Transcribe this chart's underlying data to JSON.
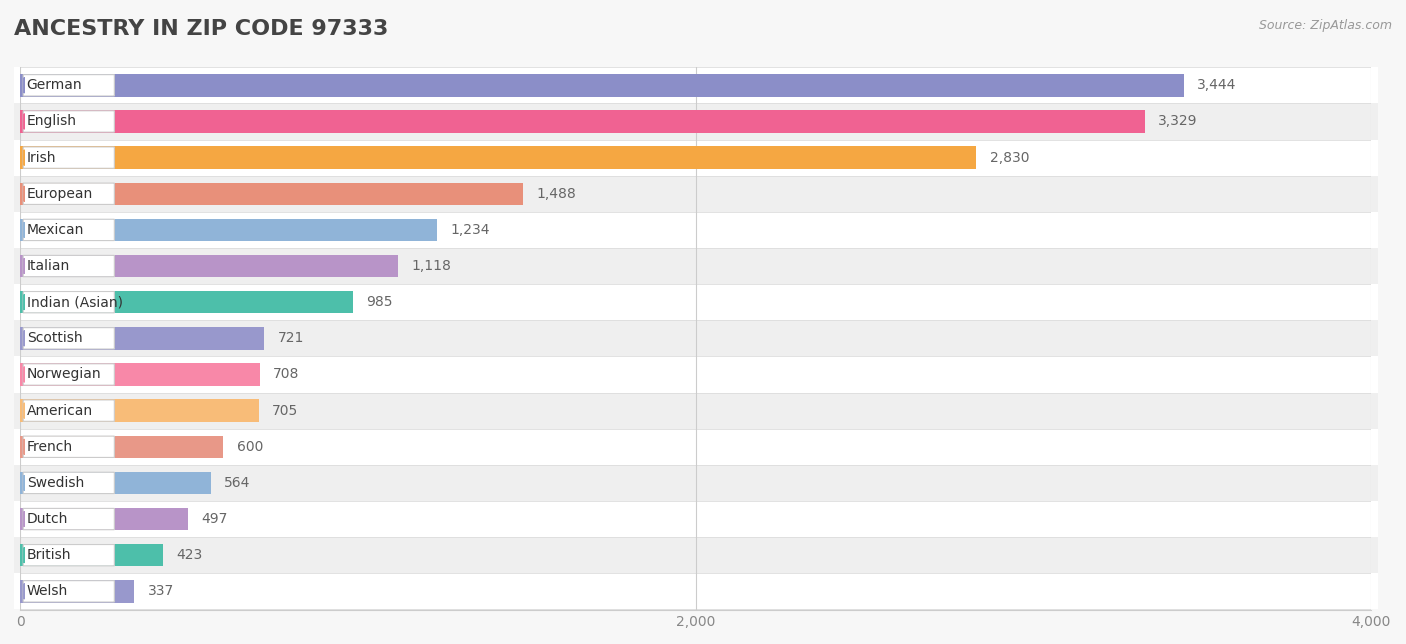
{
  "title": "ANCESTRY IN ZIP CODE 97333",
  "source": "Source: ZipAtlas.com",
  "categories": [
    "German",
    "English",
    "Irish",
    "European",
    "Mexican",
    "Italian",
    "Indian (Asian)",
    "Scottish",
    "Norwegian",
    "American",
    "French",
    "Swedish",
    "Dutch",
    "British",
    "Welsh"
  ],
  "values": [
    3444,
    3329,
    2830,
    1488,
    1234,
    1118,
    985,
    721,
    708,
    705,
    600,
    564,
    497,
    423,
    337
  ],
  "bar_colors": [
    "#8b8ec8",
    "#f06292",
    "#f5a742",
    "#e8907a",
    "#90b4d8",
    "#b894c8",
    "#4dbfaa",
    "#9898cc",
    "#f888a8",
    "#f8bc78",
    "#e89888",
    "#90b4d8",
    "#b894c8",
    "#4dbfaa",
    "#9898cc"
  ],
  "xlim": [
    0,
    4000
  ],
  "xticks": [
    0,
    2000,
    4000
  ],
  "bg_color": "#f7f7f7",
  "row_colors": [
    "#ffffff",
    "#efefef"
  ],
  "title_fontsize": 16,
  "value_fontsize": 10,
  "label_fontsize": 10
}
